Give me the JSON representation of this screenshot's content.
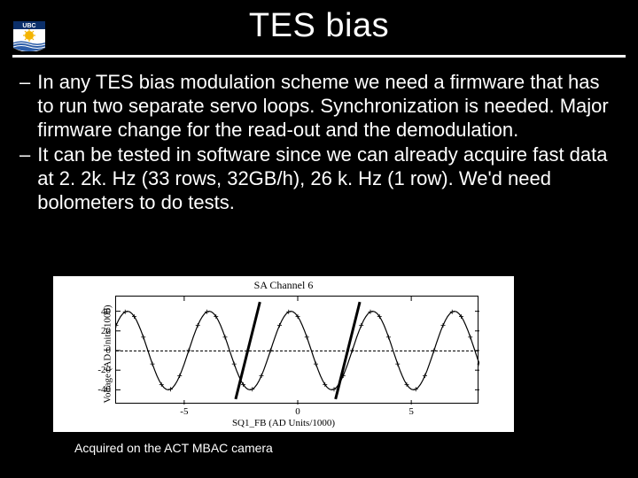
{
  "logo": {
    "text": "UBC",
    "shield_bg": "#ffffff",
    "top_band": "#0b2f6a",
    "sun_color": "#f4b400",
    "wave_color": "#2e5ea8"
  },
  "title": "TES bias",
  "bullets": [
    "In any TES bias modulation scheme we need a firmware that has to run two separate servo loops. Synchronization is needed. Major firmware change for the read-out and the demodulation.",
    "It can be tested in software since we can already acquire fast data at 2. 2k. Hz (33 rows, 32GB/h), 26 k. Hz (1 row). We'd need bolometers to do tests."
  ],
  "chart": {
    "title": "SA Channel  6",
    "xlabel": "SQ1_FB (AD Units/1000)",
    "ylabel": "Voltage (AD Units/1000)",
    "xlim": [
      -8,
      8
    ],
    "ylim": [
      -55,
      55
    ],
    "xticks": [
      -5,
      0,
      5
    ],
    "yticks": [
      -40,
      -20,
      0,
      20,
      40
    ],
    "amplitude": 40,
    "period": 3.6,
    "phase": -1.2,
    "samples": 160,
    "line_color": "#000000",
    "dash_y": 0,
    "annotation_lines": [
      {
        "x": -2.2,
        "tilt": -14
      },
      {
        "x": 2.2,
        "tilt": -14
      }
    ],
    "annot_color": "#000000"
  },
  "caption": "Acquired on the ACT MBAC camera"
}
